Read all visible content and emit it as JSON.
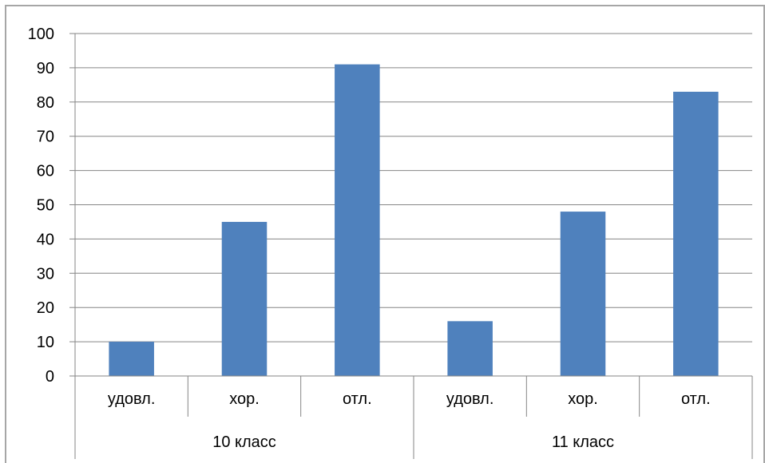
{
  "chart_data": {
    "type": "bar",
    "title": "",
    "xlabel": "",
    "ylabel": "",
    "ylim": [
      0,
      100
    ],
    "yticks": [
      0,
      10,
      20,
      30,
      40,
      50,
      60,
      70,
      80,
      90,
      100
    ],
    "grid": true,
    "legend": "none",
    "bar_color": "#4f81bd",
    "groups": [
      {
        "label": "10 класс",
        "categories": [
          "удовл.",
          "хор.",
          "отл."
        ],
        "values": [
          10,
          45,
          91
        ]
      },
      {
        "label": "11 класс",
        "categories": [
          "удовл.",
          "хор.",
          "отл."
        ],
        "values": [
          16,
          48,
          83
        ]
      }
    ]
  }
}
